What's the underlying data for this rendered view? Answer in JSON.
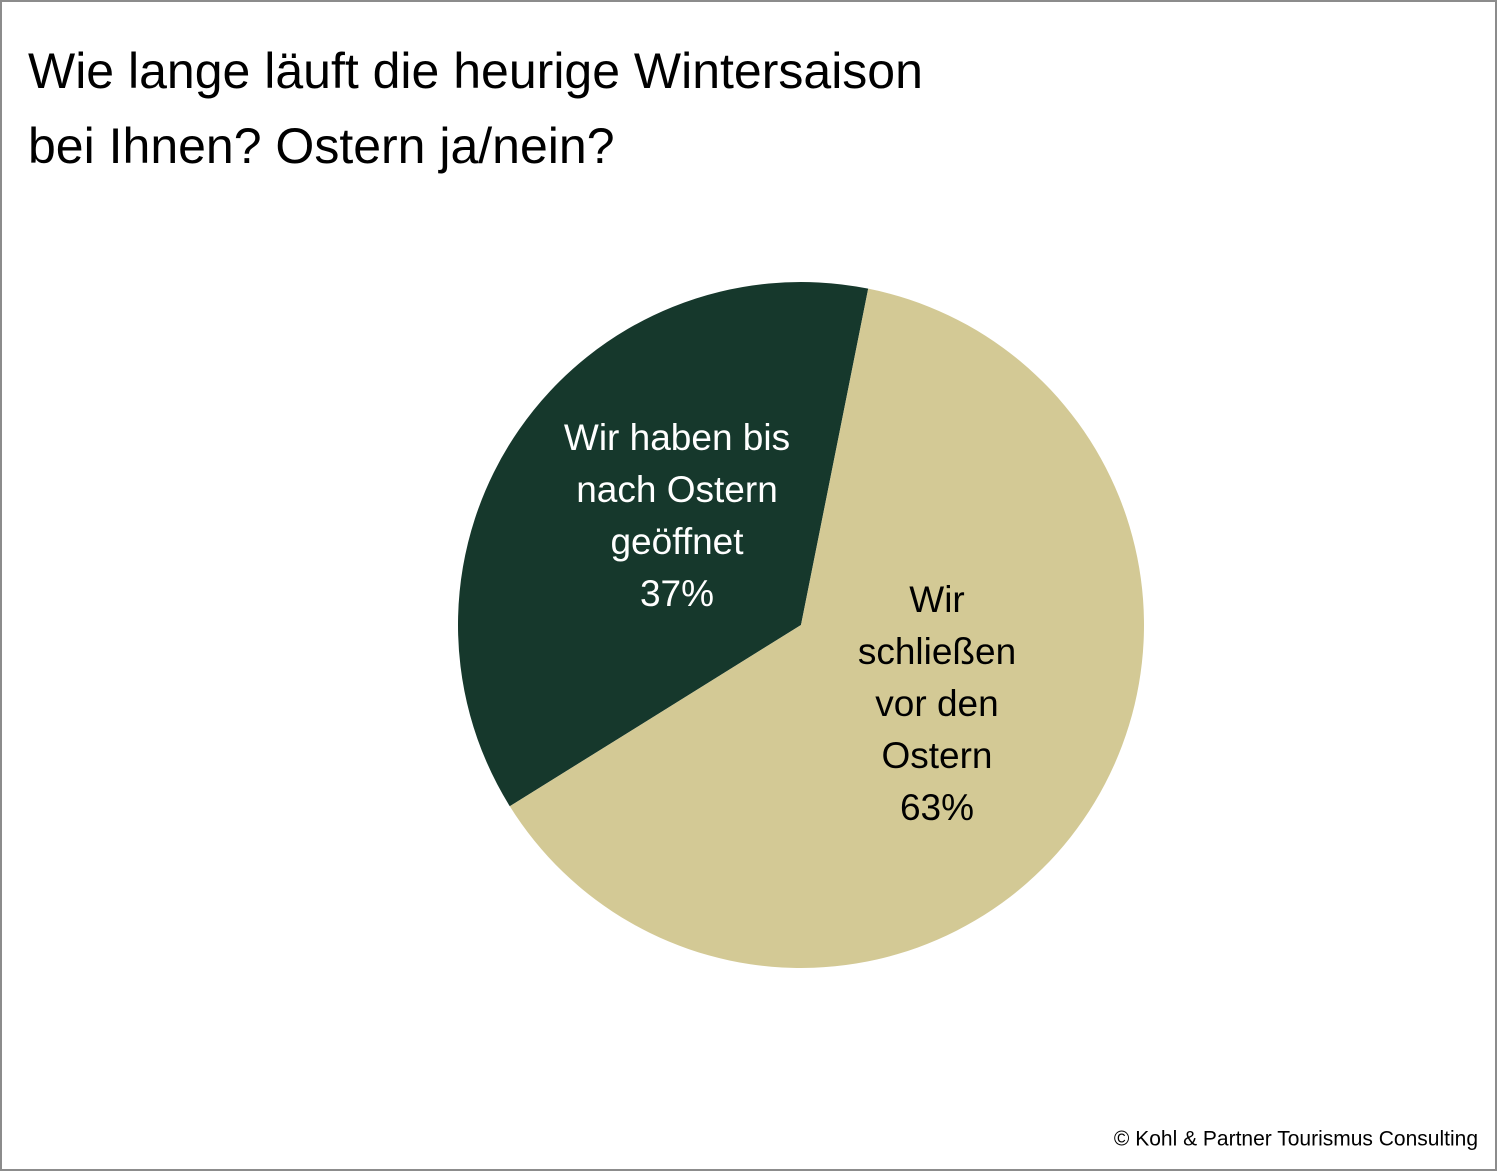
{
  "chart_data": {
    "type": "pie",
    "title": "Wie lange läuft die heurige Wintersaison\nbei Ihnen? Ostern ja/nein?",
    "categories": [
      "Wir haben bis\nnach Ostern\ngeöffnet",
      "Wir\nschließen\nvor den\nOstern"
    ],
    "values": [
      37,
      63
    ],
    "value_labels": [
      "37%",
      "63%"
    ],
    "colors": [
      "#16382c",
      "#d3c995"
    ],
    "label_colors": [
      "#ffffff",
      "#000000"
    ],
    "source": "© Kohl & Partner Tourismus Consulting"
  }
}
